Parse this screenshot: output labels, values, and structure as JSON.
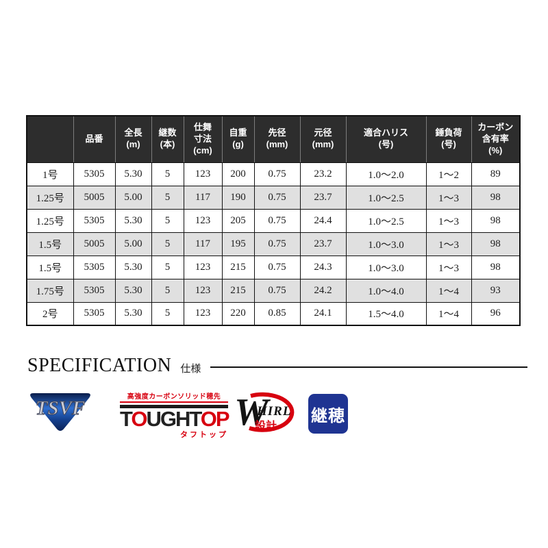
{
  "table": {
    "headers": [
      "",
      "品番",
      "全長\n(m)",
      "継数\n(本)",
      "仕舞\n寸法\n(cm)",
      "自重\n(g)",
      "先径\n(mm)",
      "元径\n(mm)",
      "適合ハリス\n(号)",
      "錘負荷\n(号)",
      "カーボン\n含有率\n(%)"
    ],
    "rows": [
      [
        "1号",
        "5305",
        "5.30",
        "5",
        "123",
        "200",
        "0.75",
        "23.2",
        "1.0〜2.0",
        "1〜2",
        "89"
      ],
      [
        "1.25号",
        "5005",
        "5.00",
        "5",
        "117",
        "190",
        "0.75",
        "23.7",
        "1.0〜2.5",
        "1〜3",
        "98"
      ],
      [
        "1.25号",
        "5305",
        "5.30",
        "5",
        "123",
        "205",
        "0.75",
        "24.4",
        "1.0〜2.5",
        "1〜3",
        "98"
      ],
      [
        "1.5号",
        "5005",
        "5.00",
        "5",
        "117",
        "195",
        "0.75",
        "23.7",
        "1.0〜3.0",
        "1〜3",
        "98"
      ],
      [
        "1.5号",
        "5305",
        "5.30",
        "5",
        "123",
        "215",
        "0.75",
        "24.3",
        "1.0〜3.0",
        "1〜3",
        "98"
      ],
      [
        "1.75号",
        "5305",
        "5.30",
        "5",
        "123",
        "215",
        "0.75",
        "24.2",
        "1.0〜4.0",
        "1〜4",
        "93"
      ],
      [
        "2号",
        "5305",
        "5.30",
        "5",
        "123",
        "220",
        "0.85",
        "24.1",
        "1.5〜4.0",
        "1〜4",
        "96"
      ]
    ]
  },
  "section": {
    "title": "SPECIFICATION",
    "subtitle": "仕様"
  },
  "logos": {
    "tsvf": {
      "text": "TSVF"
    },
    "toughtop": {
      "tagline": "高強度カーボンソリッド穂先",
      "l1": "T",
      "l2": "O",
      "l3": "UGH",
      "l4": "T",
      "l5": "O",
      "l6": "P",
      "sub": "タフトップ"
    },
    "whirl": {
      "w": "W",
      "hirl": "HIRL",
      "sub": "設計"
    },
    "tsugiho": {
      "text": "継穂"
    }
  },
  "colors": {
    "header_bg": "#2d2d2d",
    "row_alt_bg": "#e0e0e0",
    "accent_red": "#d7000f",
    "tsvf_blue": "#1d4f9e",
    "tsugiho_blue": "#1f3492"
  }
}
